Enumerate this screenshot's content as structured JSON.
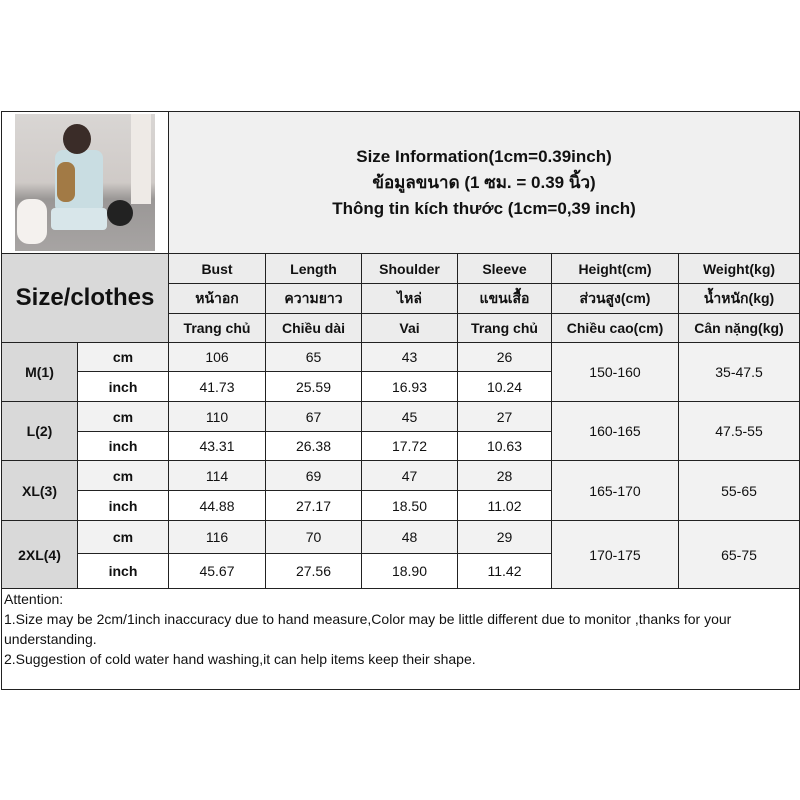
{
  "title": {
    "line1": "Size Information(1cm=0.39inch)",
    "line2": "ข้อมูลขนาด (1 ซม. = 0.39 นิ้ว)",
    "line3": "Thông tin kích thước (1cm=0,39 inch)"
  },
  "size_header": "Size/clothes",
  "columns": [
    {
      "en": "Bust",
      "th": "หน้าอก",
      "vi": "Trang chủ"
    },
    {
      "en": "Length",
      "th": "ความยาว",
      "vi": "Chiều dài"
    },
    {
      "en": "Shoulder",
      "th": "ไหล่",
      "vi": "Vai"
    },
    {
      "en": "Sleeve",
      "th": "แขนเสื้อ",
      "vi": "Trang chủ"
    },
    {
      "en": "Height(cm)",
      "th": "ส่วนสูง(cm)",
      "vi": "Chiều cao(cm)"
    },
    {
      "en": "Weight(kg)",
      "th": "น้ำหนัก(kg)",
      "vi": "Cân nặng(kg)"
    }
  ],
  "rows": [
    {
      "size": "M(1)",
      "cm_label": "cm",
      "inch_label": "inch",
      "cm": [
        "106",
        "65",
        "43",
        "26"
      ],
      "inch": [
        "41.73",
        "25.59",
        "16.93",
        "10.24"
      ],
      "height": "150-160",
      "weight": "35-47.5"
    },
    {
      "size": "L(2)",
      "cm_label": "cm",
      "inch_label": "inch",
      "cm": [
        "110",
        "67",
        "45",
        "27"
      ],
      "inch": [
        "43.31",
        "26.38",
        "17.72",
        "10.63"
      ],
      "height": "160-165",
      "weight": "47.5-55"
    },
    {
      "size": "XL(3)",
      "cm_label": "cm",
      "inch_label": "inch",
      "cm": [
        "114",
        "69",
        "47",
        "28"
      ],
      "inch": [
        "44.88",
        "27.17",
        "18.50",
        "11.02"
      ],
      "height": "165-170",
      "weight": "55-65"
    },
    {
      "size": "2XL(4)",
      "cm_label": "cm",
      "inch_label": "inch",
      "cm": [
        "116",
        "70",
        "48",
        "29"
      ],
      "inch": [
        "45.67",
        "27.56",
        "18.90",
        "11.42"
      ],
      "height": "170-175",
      "weight": "65-75"
    }
  ],
  "attention": {
    "heading": "Attention:",
    "line1": "1.Size may be 2cm/1inch inaccuracy due to hand measure,Color may be little different due to monitor ,thanks for your understanding.",
    "line2": "2.Suggestion of cold water hand washing,it can help items keep their shape."
  }
}
